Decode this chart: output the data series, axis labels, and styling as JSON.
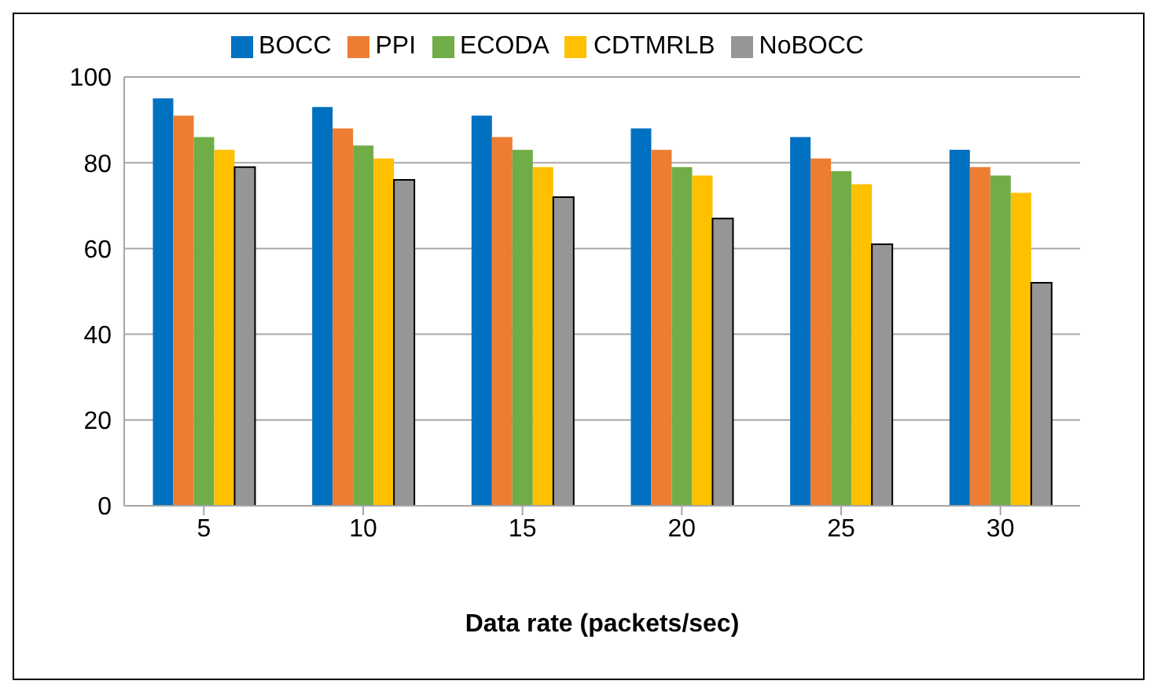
{
  "chart_data": {
    "type": "bar",
    "xlabel": "Data rate (packets/sec)",
    "categories": [
      "5",
      "10",
      "15",
      "20",
      "25",
      "30"
    ],
    "series": [
      {
        "name": "BOCC",
        "color": "#0070c0",
        "values": [
          95,
          93,
          91,
          88,
          86,
          83
        ]
      },
      {
        "name": "PPI",
        "color": "#ed7d31",
        "values": [
          91,
          88,
          86,
          83,
          81,
          79
        ]
      },
      {
        "name": "ECODA",
        "color": "#70ad47",
        "values": [
          86,
          84,
          83,
          79,
          78,
          77
        ]
      },
      {
        "name": "CDTMRLB",
        "color": "#ffc000",
        "values": [
          83,
          81,
          79,
          77,
          75,
          73
        ]
      },
      {
        "name": "NoBOCC",
        "color": "#969696",
        "values": [
          79,
          76,
          72,
          67,
          61,
          52
        ]
      }
    ],
    "ylim": [
      0,
      100
    ],
    "yticks": [
      0,
      20,
      40,
      60,
      80,
      100
    ],
    "grid": "y",
    "legend": "top"
  }
}
